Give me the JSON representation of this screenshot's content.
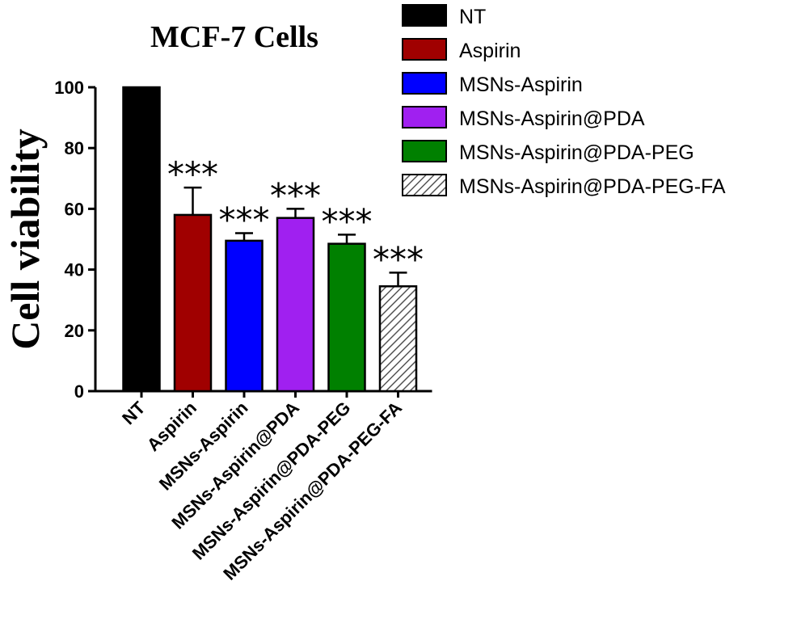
{
  "chart_data": {
    "type": "bar",
    "title": "MCF-7 Cells",
    "xlabel": "",
    "ylabel": "Cell viability",
    "ylim": [
      0,
      100
    ],
    "yticks": [
      0,
      20,
      40,
      60,
      80,
      100
    ],
    "categories": [
      "NT",
      "Aspirin",
      "MSNs-Aspirin",
      "MSNs-Aspirin@PDA",
      "MSNs-Aspirin@PDA-PEG",
      "MSNs-Aspirin@PDA-PEG-FA"
    ],
    "values": [
      100,
      58,
      49.5,
      57,
      48.5,
      34.5
    ],
    "errors": [
      0,
      9,
      2.5,
      3,
      3,
      4.5
    ],
    "significance": [
      "",
      "***",
      "***",
      "***",
      "***",
      "***"
    ],
    "colors": [
      "#000000",
      "#a00000",
      "#0000ff",
      "#a020f0",
      "#008000",
      "hatch"
    ],
    "grid": false,
    "legend": {
      "placement": "top-right",
      "entries": [
        "NT",
        "Aspirin",
        "MSNs-Aspirin",
        "MSNs-Aspirin@PDA",
        "MSNs-Aspirin@PDA-PEG",
        "MSNs-Aspirin@PDA-PEG-FA"
      ]
    }
  }
}
